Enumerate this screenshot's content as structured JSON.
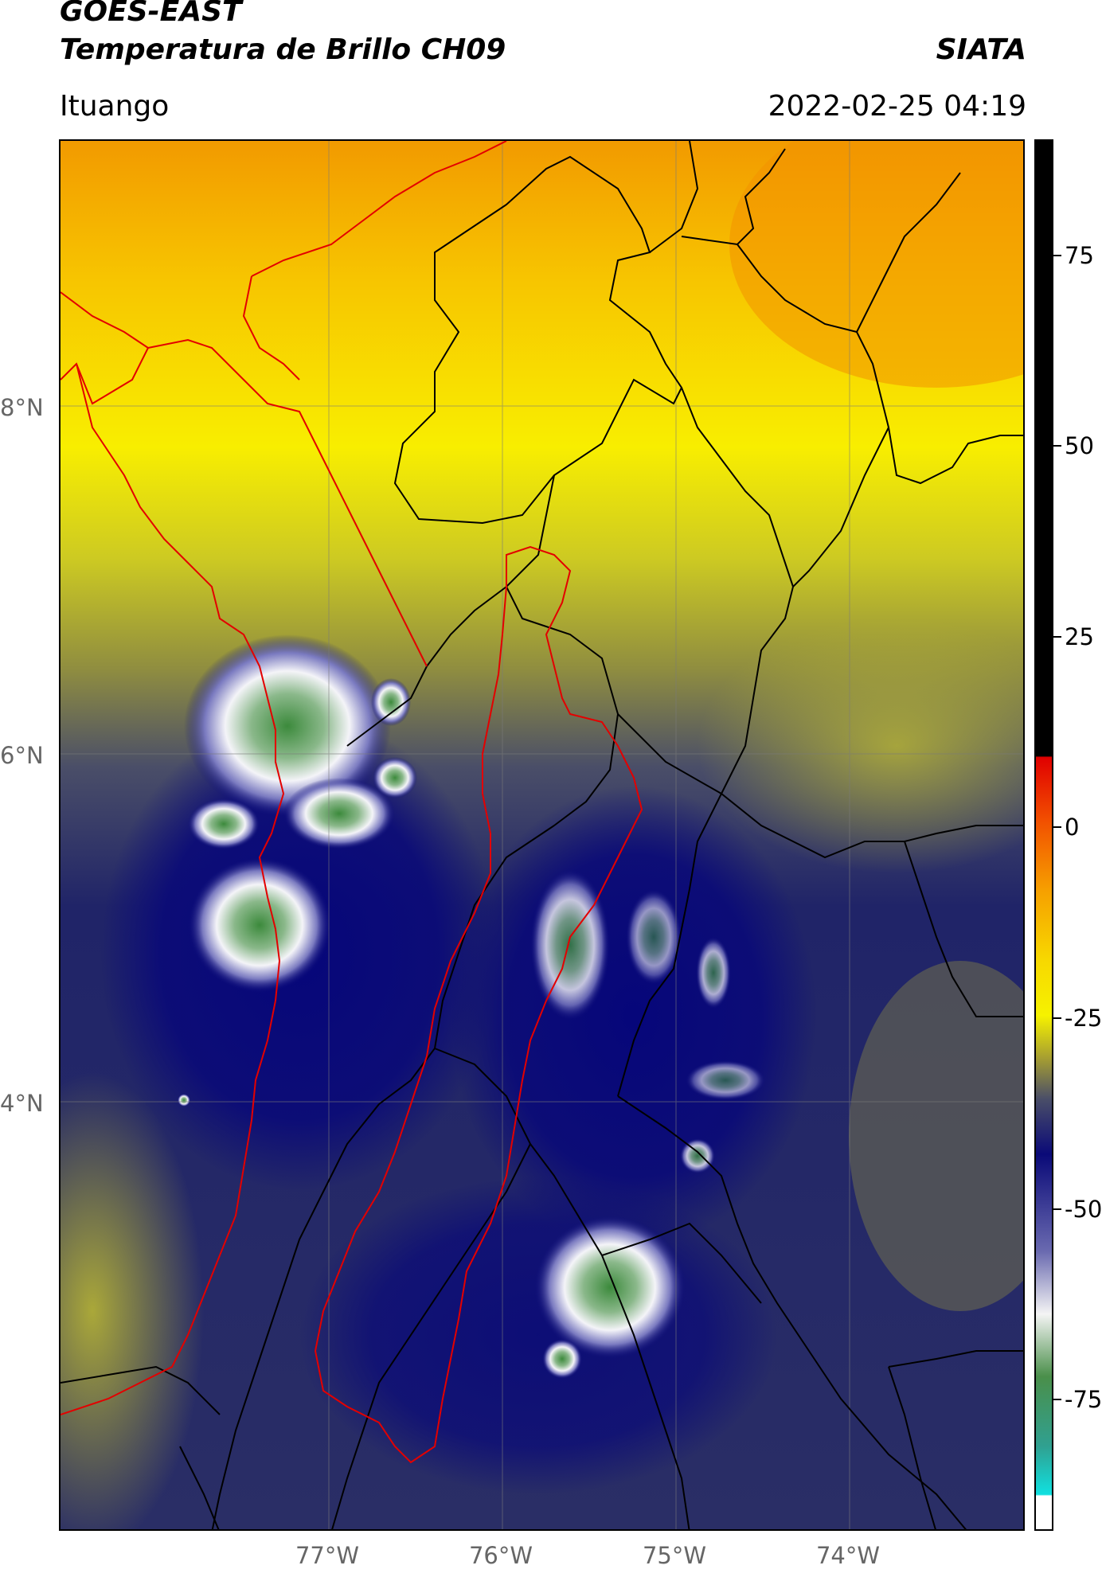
{
  "header": {
    "satellite": "GOES-EAST",
    "product": "Temperatura de Brillo CH09",
    "organization": "SIATA",
    "region": "Ituango",
    "datetime": "2022-02-25 04:19"
  },
  "map": {
    "latitude_labels": [
      "8°N",
      "6°N",
      "4°N"
    ],
    "longitude_labels": [
      "77°W",
      "76°W",
      "75°W",
      "74°W"
    ],
    "latitudes": [
      8,
      6,
      4
    ],
    "longitudes": [
      -77,
      -76,
      -75,
      -74
    ],
    "colors": {
      "warm_orange": "#f4a000",
      "yellow": "#f6f000",
      "olive": "#a5a030",
      "gray_blue": "#454a6c",
      "navy": "#0a0a78",
      "white": "#f4f4f8",
      "green": "#4a8f4a",
      "border_red": "#e30000",
      "border_black": "#000000"
    }
  },
  "colorbar": {
    "tick_labels": [
      "75",
      "50",
      "25",
      "0",
      "-25",
      "-50",
      "-75"
    ],
    "tick_values": [
      75,
      50,
      25,
      0,
      -25,
      -50,
      -75
    ],
    "range": [
      -92,
      90
    ]
  }
}
